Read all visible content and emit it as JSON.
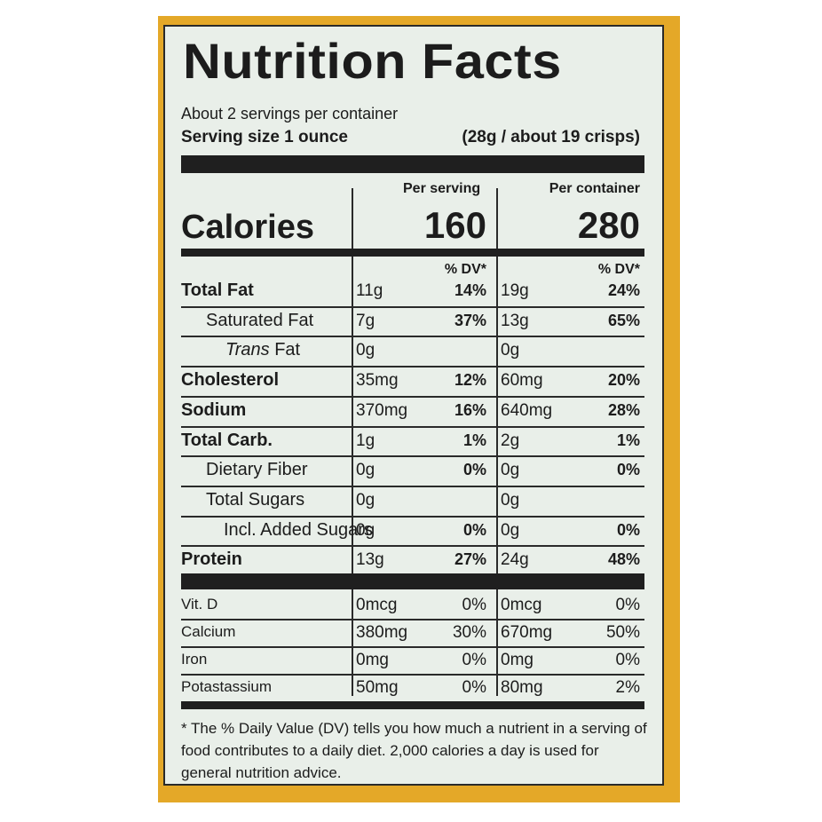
{
  "title": "Nutrition Facts",
  "servings_per_container": "About 2 servings per container",
  "serving_size_label": "Serving size 1 ounce",
  "serving_size_detail": "(28g / about 19 crisps)",
  "columns": {
    "per_serving": "Per serving",
    "per_container": "Per container",
    "dv_label": "% DV*"
  },
  "calories": {
    "label": "Calories",
    "per_serving": "160",
    "per_container": "280"
  },
  "nutrients": [
    {
      "label": "Total Fat",
      "style": "bold",
      "s_amt": "11g",
      "s_dv": "14%",
      "c_amt": "19g",
      "c_dv": "24%"
    },
    {
      "label": "Saturated Fat",
      "style": "indent",
      "s_amt": "7g",
      "s_dv": "37%",
      "c_amt": "13g",
      "c_dv": "65%"
    },
    {
      "label_italic": "Trans",
      "label_rest": " Fat",
      "style": "indent2",
      "s_amt": "0g",
      "s_dv": "",
      "c_amt": "0g",
      "c_dv": ""
    },
    {
      "label": "Cholesterol",
      "style": "bold",
      "s_amt": "35mg",
      "s_dv": "12%",
      "c_amt": "60mg",
      "c_dv": "20%"
    },
    {
      "label": "Sodium",
      "style": "bold",
      "s_amt": "370mg",
      "s_dv": "16%",
      "c_amt": "640mg",
      "c_dv": "28%"
    },
    {
      "label": "Total Carb.",
      "style": "bold",
      "s_amt": "1g",
      "s_dv": "1%",
      "c_amt": "2g",
      "c_dv": "1%"
    },
    {
      "label": "Dietary Fiber",
      "style": "indent",
      "s_amt": "0g",
      "s_dv": "0%",
      "c_amt": "0g",
      "c_dv": "0%"
    },
    {
      "label": "Total Sugars",
      "style": "indent",
      "s_amt": "0g",
      "s_dv": "",
      "c_amt": "0g",
      "c_dv": ""
    },
    {
      "label": "Incl. Added Sugars",
      "style": "indent3",
      "s_amt": "0g",
      "s_dv": "0%",
      "c_amt": "0g",
      "c_dv": "0%"
    },
    {
      "label": "Protein",
      "style": "bold",
      "s_amt": "13g",
      "s_dv": "27%",
      "c_amt": "24g",
      "c_dv": "48%"
    }
  ],
  "vitamins": [
    {
      "label": "Vit. D",
      "s_amt": "0mcg",
      "s_dv": "0%",
      "c_amt": "0mcg",
      "c_dv": "0%"
    },
    {
      "label": "Calcium",
      "s_amt": "380mg",
      "s_dv": "30%",
      "c_amt": "670mg",
      "c_dv": "50%"
    },
    {
      "label": "Iron",
      "s_amt": "0mg",
      "s_dv": "0%",
      "c_amt": "0mg",
      "c_dv": "0%"
    },
    {
      "label": "Potastassium",
      "s_amt": "50mg",
      "s_dv": "0%",
      "c_amt": "80mg",
      "c_dv": "2%"
    }
  ],
  "footnote": "* The % Daily Value (DV) tells you how much a nutrient in a serving of food contributes to a daily diet. 2,000 calories a day is used for general nutrition advice.",
  "colors": {
    "package": "#e4a828",
    "label_bg": "#e9efe9",
    "ink": "#1c1c1c"
  }
}
